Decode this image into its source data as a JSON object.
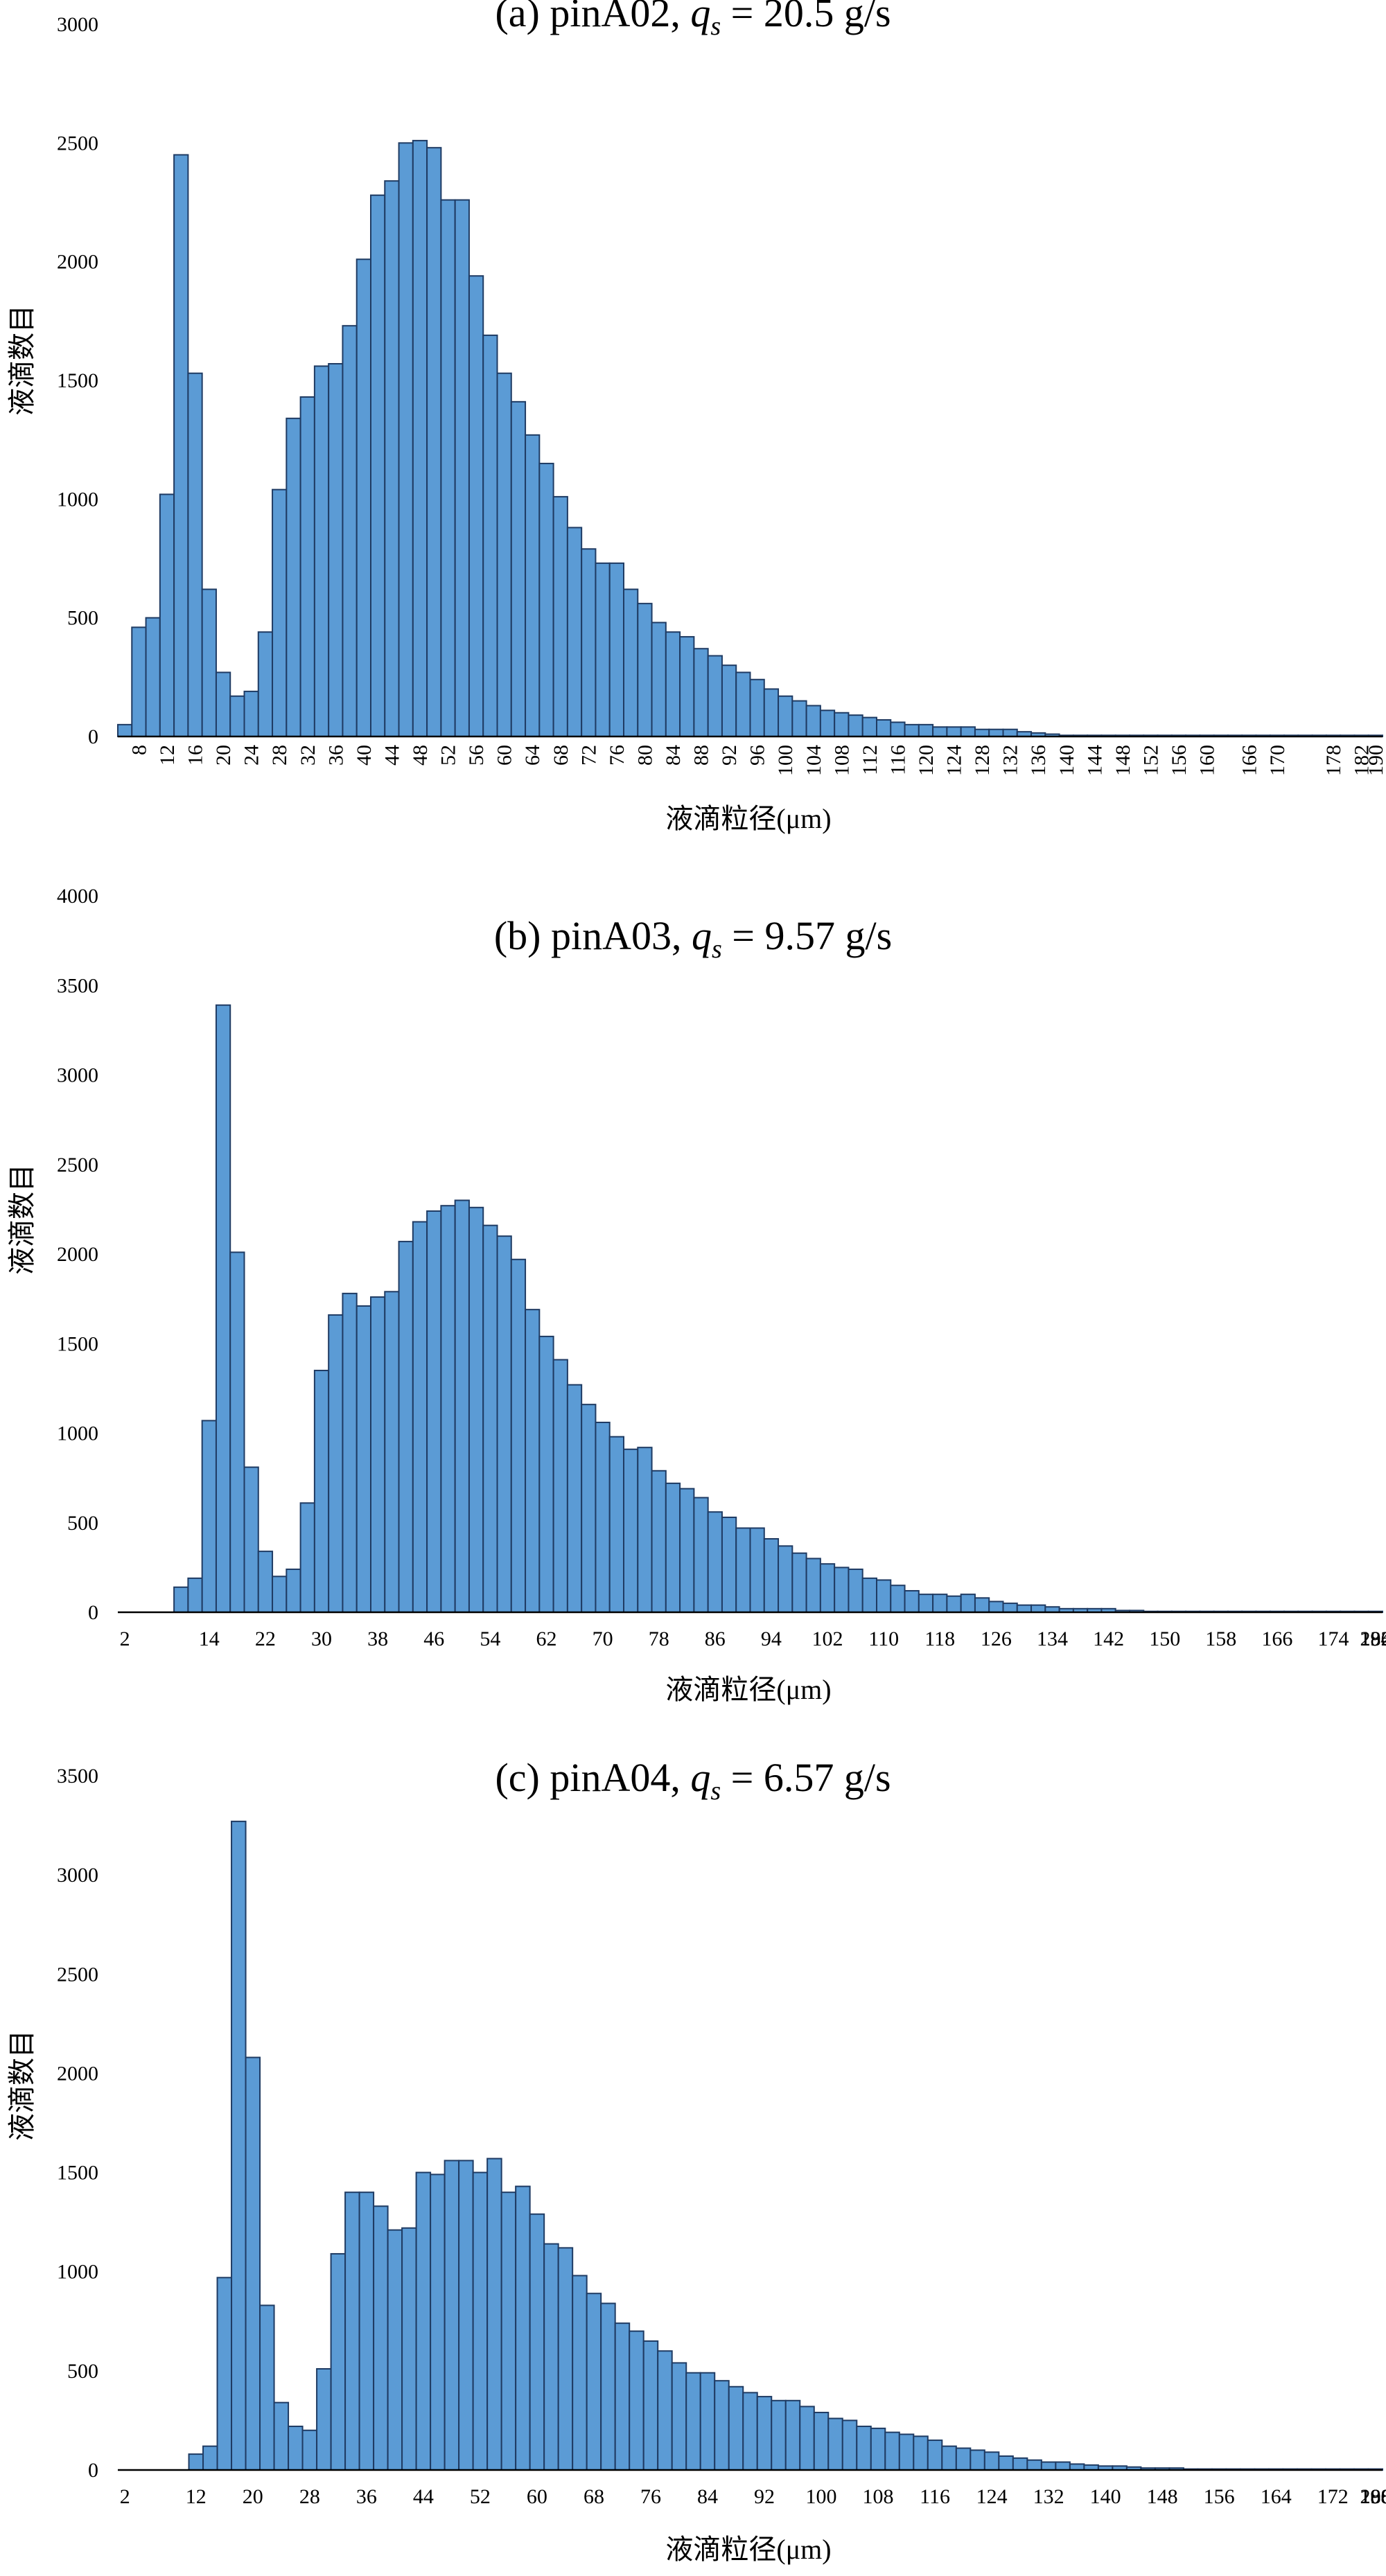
{
  "chart_data": [
    {
      "type": "bar",
      "panel": "a",
      "title_prefix": "(a) pinA02, ",
      "title_var": "q",
      "title_sub": "s",
      "title_suffix": " = 20.5 g/s",
      "xlabel": "液滴粒径(μm)",
      "ylabel": "液滴数目",
      "ylim": [
        0,
        3000
      ],
      "yticks": [
        "0",
        "500",
        "1000",
        "1500",
        "2000",
        "2500",
        "3000"
      ],
      "x_start": 6,
      "bin_width": 2,
      "xtick_labels": [
        "8",
        "12",
        "16",
        "20",
        "24",
        "28",
        "32",
        "36",
        "40",
        "44",
        "48",
        "52",
        "56",
        "60",
        "64",
        "68",
        "72",
        "76",
        "80",
        "84",
        "88",
        "92",
        "96",
        "100",
        "104",
        "108",
        "112",
        "116",
        "120",
        "124",
        "128",
        "132",
        "136",
        "140",
        "144",
        "148",
        "152",
        "156",
        "160",
        "166",
        "170",
        "178",
        "182",
        "190"
      ],
      "values": [
        50,
        460,
        500,
        1020,
        2450,
        1530,
        620,
        270,
        170,
        190,
        440,
        1040,
        1340,
        1430,
        1560,
        1570,
        1730,
        2010,
        2280,
        2340,
        2500,
        2510,
        2480,
        2260,
        2260,
        1940,
        1690,
        1530,
        1410,
        1270,
        1150,
        1010,
        880,
        790,
        730,
        730,
        620,
        560,
        480,
        440,
        420,
        370,
        340,
        300,
        270,
        240,
        200,
        170,
        150,
        130,
        110,
        100,
        90,
        80,
        70,
        60,
        50,
        50,
        40,
        40,
        40,
        30,
        30,
        30,
        20,
        15,
        10,
        5,
        5,
        5,
        5,
        5,
        5,
        5,
        5,
        5,
        5,
        5,
        5,
        5,
        5,
        5,
        5,
        5,
        5,
        5,
        5,
        5,
        5,
        5
      ]
    },
    {
      "type": "bar",
      "panel": "b",
      "title_prefix": "(b) pinA03, ",
      "title_var": "q",
      "title_sub": "s",
      "title_suffix": " = 9.57 g/s",
      "xlabel": "液滴粒径(μm)",
      "ylabel": "液滴数目",
      "ylim": [
        0,
        4000
      ],
      "yticks": [
        "0",
        "500",
        "1000",
        "1500",
        "2000",
        "2500",
        "3000",
        "3500",
        "4000"
      ],
      "x_start": 2,
      "bin_width": 2,
      "xtick_labels": [
        "2",
        "14",
        "22",
        "30",
        "38",
        "46",
        "54",
        "62",
        "70",
        "78",
        "86",
        "94",
        "102",
        "110",
        "118",
        "126",
        "134",
        "142",
        "150",
        "158",
        "166",
        "174",
        "182",
        "196",
        "234"
      ],
      "values": [
        0,
        0,
        0,
        0,
        140,
        190,
        1070,
        3390,
        2010,
        810,
        340,
        200,
        240,
        610,
        1350,
        1660,
        1780,
        1710,
        1760,
        1790,
        2070,
        2180,
        2240,
        2270,
        2300,
        2260,
        2160,
        2100,
        1970,
        1690,
        1540,
        1410,
        1270,
        1160,
        1060,
        980,
        910,
        920,
        790,
        720,
        690,
        640,
        560,
        530,
        470,
        470,
        410,
        370,
        330,
        300,
        270,
        250,
        240,
        190,
        180,
        150,
        120,
        100,
        100,
        90,
        100,
        80,
        60,
        50,
        40,
        40,
        30,
        20,
        20,
        20,
        20,
        10,
        10,
        5,
        5,
        5,
        5,
        5,
        5,
        5,
        5,
        5,
        5,
        5,
        5,
        5,
        5,
        5,
        5,
        5
      ]
    },
    {
      "type": "bar",
      "panel": "c",
      "title_prefix": "(c) pinA04, ",
      "title_var": "q",
      "title_sub": "s",
      "title_suffix": " = 6.57 g/s",
      "xlabel": "液滴粒径(μm)",
      "ylabel": "液滴数目",
      "ylim": [
        0,
        3500
      ],
      "yticks": [
        "0",
        "500",
        "1000",
        "1500",
        "2000",
        "2500",
        "3000",
        "3500"
      ],
      "x_start": 2,
      "bin_width": 2,
      "xtick_labels": [
        "2",
        "12",
        "20",
        "28",
        "36",
        "44",
        "52",
        "60",
        "68",
        "76",
        "84",
        "92",
        "100",
        "108",
        "116",
        "124",
        "132",
        "140",
        "148",
        "156",
        "164",
        "172",
        "180",
        "188",
        "196",
        "208"
      ],
      "values": [
        0,
        0,
        0,
        0,
        0,
        80,
        120,
        970,
        3270,
        2080,
        830,
        340,
        220,
        200,
        510,
        1090,
        1400,
        1400,
        1330,
        1210,
        1220,
        1500,
        1490,
        1560,
        1560,
        1500,
        1570,
        1400,
        1430,
        1290,
        1140,
        1120,
        980,
        890,
        840,
        740,
        700,
        650,
        600,
        540,
        490,
        490,
        450,
        420,
        390,
        370,
        350,
        350,
        320,
        290,
        260,
        250,
        220,
        210,
        190,
        180,
        170,
        150,
        120,
        110,
        100,
        90,
        70,
        60,
        50,
        40,
        40,
        30,
        25,
        20,
        20,
        15,
        10,
        10,
        10,
        5,
        5,
        5,
        5,
        5,
        5,
        5,
        5,
        5,
        5,
        5,
        5,
        5,
        5
      ]
    }
  ]
}
